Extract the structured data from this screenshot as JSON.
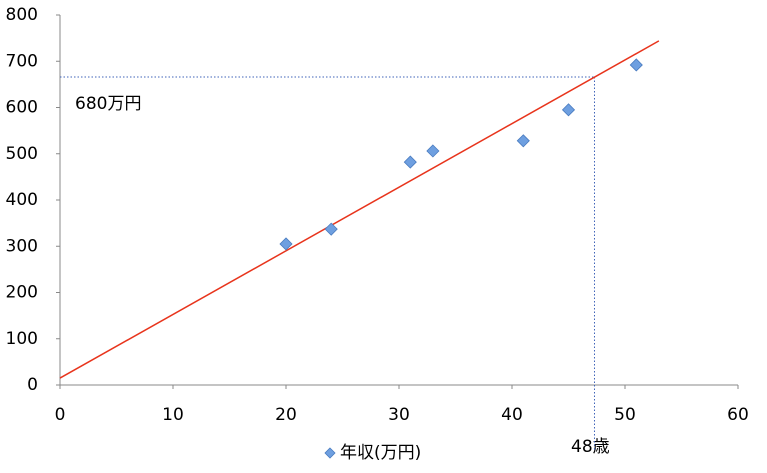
{
  "chart_data": {
    "type": "scatter",
    "series": [
      {
        "name": "年収(万円)",
        "color": "#6e9fe0",
        "x": [
          20,
          24,
          31,
          33,
          41,
          45,
          51
        ],
        "values": [
          305,
          337,
          482,
          506,
          528,
          595,
          692
        ]
      }
    ],
    "trendline": {
      "color": "#e8341c",
      "x": [
        0,
        53
      ],
      "values": [
        15,
        744
      ]
    },
    "reference": {
      "color": "#3f63b8",
      "x": 47.3,
      "y": 666
    },
    "annotations": [
      "680万円",
      "48歳"
    ],
    "xlim": [
      0,
      60
    ],
    "xticks": [
      0,
      10,
      20,
      30,
      40,
      50,
      60
    ],
    "ylim": [
      0,
      800
    ],
    "yticks": [
      0,
      100,
      200,
      300,
      400,
      500,
      600,
      700,
      800
    ],
    "grid": false,
    "legend": "bottom"
  }
}
